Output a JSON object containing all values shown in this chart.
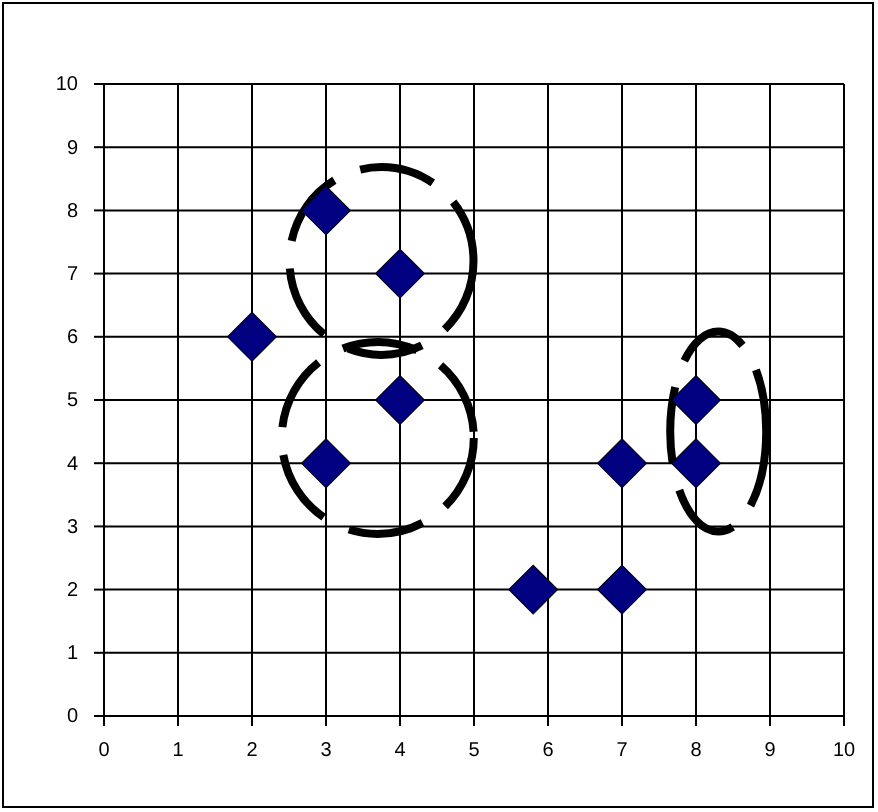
{
  "chart_data": {
    "type": "scatter",
    "x": [
      2,
      3,
      4,
      3,
      4,
      5.8,
      7,
      7,
      8,
      8
    ],
    "values": [
      6,
      8,
      7,
      4,
      5,
      2,
      2,
      4,
      4,
      5
    ],
    "color": "#000080",
    "marker": "diamond",
    "grid": true,
    "xlim": [
      0,
      10
    ],
    "ylim": [
      0,
      10
    ],
    "xticks": [
      0,
      1,
      2,
      3,
      4,
      5,
      6,
      7,
      8,
      9,
      10
    ],
    "yticks": [
      0,
      1,
      2,
      3,
      4,
      5,
      6,
      7,
      8,
      9,
      10
    ]
  }
}
